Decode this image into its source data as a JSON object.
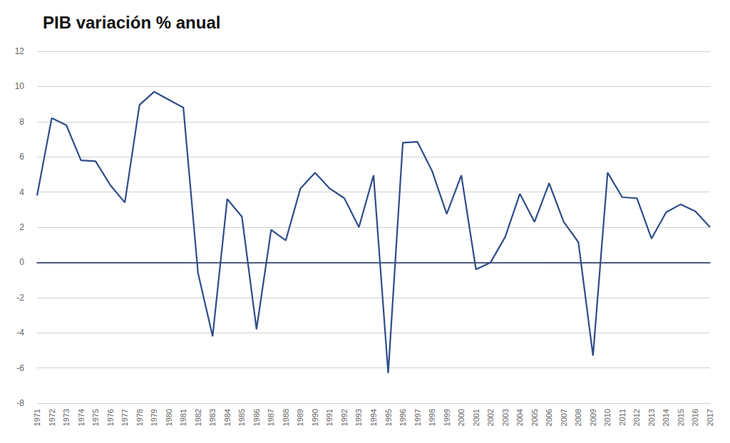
{
  "chart_data": {
    "type": "line",
    "title": "PIB variación % anual",
    "categories": [
      "1971",
      "1972",
      "1973",
      "1974",
      "1975",
      "1976",
      "1977",
      "1978",
      "1979",
      "1980",
      "1981",
      "1982",
      "1983",
      "1984",
      "1985",
      "1986",
      "1987",
      "1988",
      "1989",
      "1990",
      "1991",
      "1992",
      "1993",
      "1994",
      "1995",
      "1996",
      "1997",
      "1998",
      "1999",
      "2000",
      "2001",
      "2002",
      "2003",
      "2004",
      "2005",
      "2006",
      "2007",
      "2008",
      "2009",
      "2010",
      "2011",
      "2012",
      "2013",
      "2014",
      "2015",
      "2016",
      "2017"
    ],
    "values": [
      3.8,
      8.2,
      7.8,
      5.8,
      5.75,
      4.4,
      3.4,
      8.95,
      9.7,
      9.25,
      8.8,
      -0.6,
      -4.2,
      3.6,
      2.6,
      -3.8,
      1.85,
      1.25,
      4.2,
      5.1,
      4.2,
      3.65,
      2.0,
      4.95,
      -6.3,
      6.8,
      6.85,
      5.2,
      2.75,
      4.95,
      -0.4,
      0.0,
      1.45,
      3.9,
      2.3,
      4.5,
      2.3,
      1.15,
      -5.3,
      5.1,
      3.7,
      3.65,
      1.35,
      2.85,
      3.3,
      2.9,
      2.0
    ],
    "color": "#2e4d8a",
    "ylim": [
      -8,
      12
    ],
    "yticks": [
      -8,
      -6,
      -4,
      -2,
      0,
      2,
      4,
      6,
      8,
      10,
      12
    ],
    "grid": true,
    "marker": "none",
    "line_style": "solid"
  }
}
